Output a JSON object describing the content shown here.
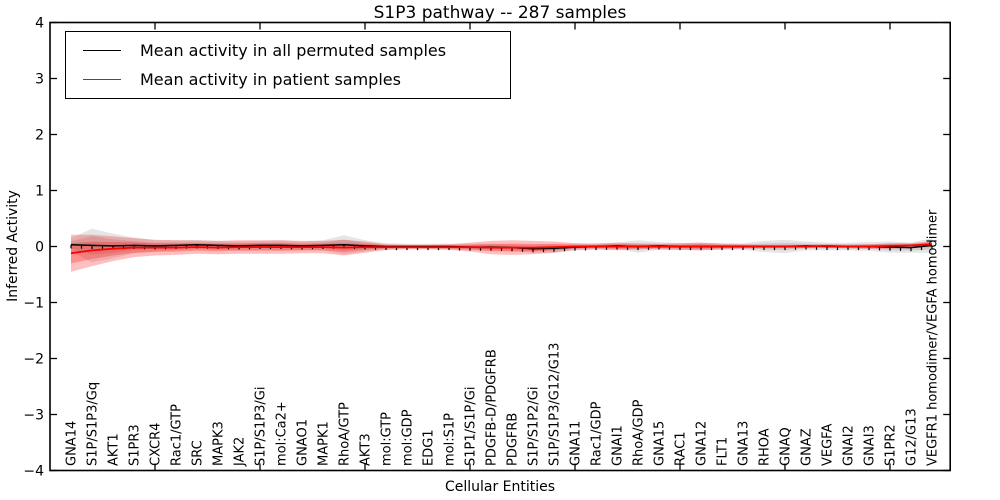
{
  "chart_data": {
    "type": "line",
    "title": "S1P3 pathway -- 287 samples",
    "xlabel": "Cellular Entities",
    "ylabel": "Inferred Activity",
    "ylim": [
      -4,
      4
    ],
    "yticks": [
      4,
      3,
      2,
      1,
      0,
      -1,
      -2,
      -3,
      -4
    ],
    "xtick_interval": 5,
    "grid": false,
    "legend_position": "upper left",
    "categories": [
      "GNA14",
      "S1P/S1P3/Gq",
      "AKT1",
      "S1PR3",
      "CXCR4",
      "Rac1/GTP",
      "SRC",
      "MAPK3",
      "JAK2",
      "S1P/S1P3/Gi",
      "mol:Ca2+",
      "GNAO1",
      "MAPK1",
      "RhoA/GTP",
      "AKT3",
      "mol:GTP",
      "mol:GDP",
      "EDG1",
      "mol:S1P",
      "S1P1/S1P/Gi",
      "PDGFB-D/PDGFRB",
      "PDGFRB",
      "S1P/S1P2/Gi",
      "S1P/S1P3/G12/G13",
      "GNA11",
      "Rac1/GDP",
      "GNAI1",
      "RhoA/GDP",
      "GNA15",
      "RAC1",
      "GNA12",
      "FLT1",
      "GNA13",
      "RHOA",
      "GNAQ",
      "GNAZ",
      "VEGFA",
      "GNAI2",
      "GNAI3",
      "S1PR2",
      "G12/G13",
      "VEGFR1 homodimer/VEGFA homodimer"
    ],
    "legend": [
      {
        "label": "Mean activity in all permuted samples",
        "color": "#000000"
      },
      {
        "label": "Mean activity in patient samples",
        "color": "#ff0000"
      }
    ],
    "series": [
      {
        "name": "Mean activity in all permuted samples",
        "color": "#000000",
        "values": [
          0.03,
          0.02,
          0.01,
          0.02,
          0.01,
          0.02,
          0.03,
          0.02,
          0.01,
          0.02,
          0.02,
          0.01,
          0.02,
          0.03,
          0.01,
          0.0,
          0.0,
          0.0,
          0.0,
          -0.01,
          -0.01,
          -0.02,
          -0.04,
          -0.03,
          -0.01,
          0.0,
          0.01,
          0.0,
          0.01,
          0.0,
          0.0,
          0.0,
          0.0,
          0.0,
          0.0,
          0.01,
          0.0,
          0.0,
          0.0,
          -0.01,
          -0.02,
          0.02
        ],
        "band_halfwidth": [
          0.12,
          0.3,
          0.22,
          0.14,
          0.1,
          0.09,
          0.08,
          0.08,
          0.08,
          0.08,
          0.09,
          0.08,
          0.09,
          0.17,
          0.1,
          0.06,
          0.05,
          0.05,
          0.05,
          0.06,
          0.06,
          0.06,
          0.07,
          0.08,
          0.06,
          0.06,
          0.06,
          0.11,
          0.07,
          0.06,
          0.07,
          0.06,
          0.06,
          0.1,
          0.12,
          0.08,
          0.07,
          0.07,
          0.08,
          0.1,
          0.09,
          0.13
        ]
      },
      {
        "name": "Mean activity in patient samples",
        "color": "#ff0000",
        "values": [
          -0.12,
          -0.07,
          -0.04,
          -0.02,
          -0.02,
          -0.02,
          -0.01,
          -0.02,
          -0.01,
          -0.01,
          -0.01,
          -0.01,
          -0.01,
          -0.02,
          -0.01,
          -0.01,
          -0.01,
          -0.01,
          -0.01,
          -0.01,
          -0.02,
          -0.02,
          -0.02,
          -0.01,
          0.0,
          0.0,
          0.0,
          0.0,
          0.0,
          0.0,
          0.0,
          0.0,
          0.0,
          0.0,
          0.0,
          0.0,
          0.01,
          0.0,
          0.0,
          0.01,
          0.02,
          0.04
        ],
        "band_halfwidth": [
          0.33,
          0.28,
          0.22,
          0.17,
          0.14,
          0.13,
          0.12,
          0.12,
          0.12,
          0.12,
          0.12,
          0.11,
          0.11,
          0.14,
          0.1,
          0.05,
          0.04,
          0.04,
          0.05,
          0.08,
          0.12,
          0.13,
          0.12,
          0.1,
          0.06,
          0.05,
          0.07,
          0.05,
          0.05,
          0.06,
          0.07,
          0.05,
          0.04,
          0.03,
          0.03,
          0.03,
          0.03,
          0.03,
          0.04,
          0.05,
          0.04,
          0.05
        ]
      }
    ],
    "band_colors": {
      "permuted_fill": "rgba(0,0,0,0.10)",
      "patient_fill": "rgba(255,0,0,0.25)"
    }
  }
}
